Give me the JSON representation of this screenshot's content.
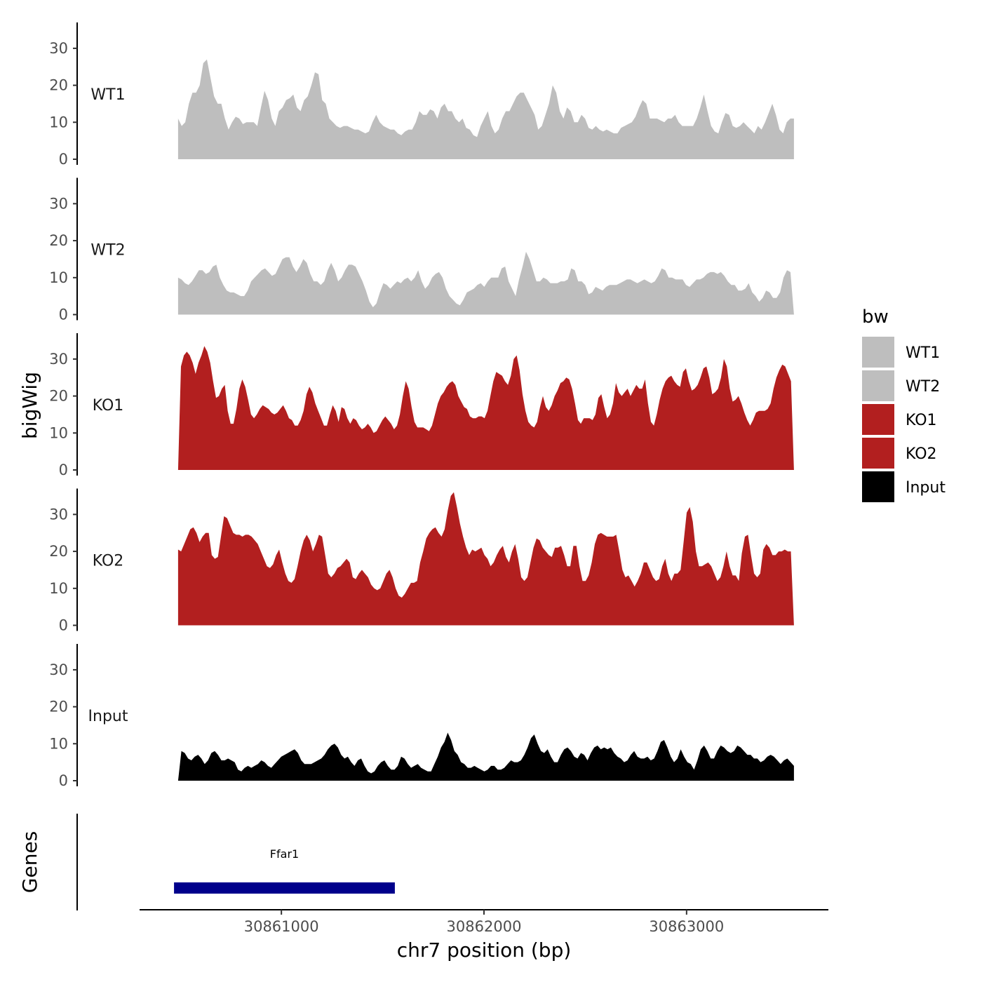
{
  "chart_data": {
    "type": "area",
    "ylabel": "bigWig",
    "genes_label": "Genes",
    "xlabel": "chr7 position (bp)",
    "xlim": [
      30860300,
      30863700
    ],
    "x_range_data": [
      30860490,
      30863530
    ],
    "ylim": [
      0,
      37
    ],
    "yticks": [
      "0",
      "10",
      "20",
      "30"
    ],
    "xticks": [
      {
        "value": 30861000,
        "label": "30861000"
      },
      {
        "value": 30862000,
        "label": "30862000"
      },
      {
        "value": 30863000,
        "label": "30863000"
      }
    ],
    "legend": {
      "title": "bw",
      "position": "right",
      "items": [
        {
          "label": "WT1",
          "color": "#bebebe"
        },
        {
          "label": "WT2",
          "color": "#bebebe"
        },
        {
          "label": "KO1",
          "color": "#b21f1f"
        },
        {
          "label": "KO2",
          "color": "#b21f1f"
        },
        {
          "label": "Input",
          "color": "#000000"
        }
      ]
    },
    "series": [
      {
        "name": "WT1",
        "color": "#bebebe",
        "values": [
          11,
          9,
          10,
          15,
          18,
          18,
          20,
          26,
          27,
          22,
          17,
          15,
          15,
          11,
          8,
          10,
          11.5,
          11,
          9.5,
          10,
          10,
          10,
          9,
          14,
          18.5,
          16,
          11,
          9,
          13,
          14,
          16,
          16.5,
          17.5,
          14,
          13,
          16,
          17,
          20,
          23.5,
          23,
          16,
          15,
          11,
          10,
          9,
          8.5,
          9,
          9,
          8.5,
          8,
          8,
          7.5,
          7,
          7.5,
          10,
          12,
          10,
          9,
          8.5,
          8,
          8,
          7,
          6.5,
          7.5,
          8,
          8,
          10,
          13,
          12,
          12,
          13.5,
          13,
          11,
          14,
          15,
          13,
          13,
          11,
          10,
          11,
          8.5,
          8,
          6.5,
          6,
          9,
          11,
          13,
          9,
          7,
          8,
          11,
          13,
          13,
          15,
          17,
          18,
          18,
          16,
          14,
          12,
          8,
          9,
          12,
          15,
          20,
          18,
          13,
          11,
          14,
          13,
          10,
          10,
          12,
          11,
          8.5,
          8,
          9,
          8,
          7.5,
          8,
          7.5,
          7,
          7,
          8.5,
          9,
          9.5,
          10,
          11.5,
          14,
          16,
          15,
          11,
          11,
          11,
          10.5,
          10,
          11,
          11,
          12,
          10,
          9,
          9,
          9,
          9,
          11,
          14,
          17.5,
          13,
          9,
          7.5,
          7,
          10,
          12.5,
          12,
          9,
          8.5,
          9,
          10,
          9,
          8,
          7,
          9,
          8,
          10,
          12.5,
          15,
          12,
          8,
          7,
          10,
          11,
          11
        ]
      },
      {
        "name": "WT2",
        "color": "#bebebe",
        "values": [
          10,
          9.5,
          8.5,
          8,
          9,
          10.5,
          12,
          12,
          11,
          11.5,
          13,
          13.5,
          10,
          8,
          6.5,
          6,
          6,
          5.5,
          5,
          5,
          6.5,
          9,
          10,
          11,
          12,
          12.5,
          11.5,
          10.5,
          11,
          13,
          15,
          15.5,
          15.5,
          13,
          11.5,
          13,
          15,
          14,
          11,
          9,
          9,
          8,
          9,
          12,
          14,
          12,
          9,
          10,
          12,
          13.5,
          13.5,
          13,
          11,
          9,
          6.5,
          3.5,
          2,
          3,
          6,
          8.5,
          8,
          7,
          8,
          9,
          8.5,
          9.5,
          10,
          9,
          10,
          12,
          9,
          7,
          8,
          10,
          11,
          11.5,
          10,
          7,
          5,
          4,
          3,
          2.5,
          4,
          6,
          6.5,
          7,
          8,
          8.5,
          7.5,
          9,
          10,
          10,
          10,
          12.5,
          13,
          9,
          7,
          5,
          9.5,
          13,
          17,
          15,
          12,
          9,
          9,
          10,
          9.5,
          8.5,
          8.5,
          8.5,
          9,
          9,
          9.5,
          12.5,
          12,
          9,
          9,
          8,
          5.5,
          6,
          7.5,
          7,
          6.5,
          7.5,
          8,
          8,
          8,
          8.5,
          9,
          9.5,
          9.5,
          9,
          8.5,
          9,
          9.5,
          9,
          8.5,
          9,
          10.5,
          12.5,
          12,
          10,
          10,
          9.5,
          9.5,
          9.5,
          8,
          7.5,
          8.5,
          9.5,
          9.5,
          10,
          11,
          11.5,
          11.5,
          11,
          11.5,
          10.5,
          9,
          8,
          8,
          6.5,
          6.5,
          7,
          8.5,
          6,
          5,
          3.5,
          4.5,
          6.5,
          6,
          4.5,
          4.5,
          6,
          10,
          12,
          11.5,
          0
        ]
      },
      {
        "name": "KO1",
        "color": "#b21f1f",
        "values": [
          0,
          28,
          31,
          32,
          31,
          29,
          26,
          29,
          31,
          33.5,
          32,
          29,
          24,
          19.5,
          20,
          22,
          23,
          16,
          12.5,
          12.5,
          16.5,
          22,
          24.5,
          22.5,
          19,
          15,
          14,
          15,
          16.5,
          17.5,
          17,
          16.5,
          15.5,
          15,
          15.5,
          16.5,
          17.5,
          16,
          14,
          13.5,
          12,
          12,
          13.5,
          16,
          20.5,
          22.5,
          21,
          18,
          16,
          14,
          12,
          12,
          15,
          17.5,
          16,
          13,
          17,
          16.5,
          14,
          12.5,
          14,
          13.5,
          12,
          11,
          11.5,
          12.5,
          11.5,
          10,
          10.5,
          12,
          13.5,
          14.5,
          13.5,
          12.5,
          11,
          12,
          15,
          20,
          24,
          22,
          17,
          13,
          11.5,
          11.5,
          11.5,
          11,
          10.5,
          12,
          15,
          18,
          20,
          21,
          22.5,
          23.5,
          24,
          23,
          20,
          18.5,
          17,
          16.5,
          14.5,
          14,
          14,
          14.5,
          14.5,
          14,
          16,
          20,
          24,
          26.5,
          26,
          25.5,
          24,
          23,
          25.5,
          30,
          31,
          27,
          20.5,
          16,
          13,
          12,
          11.5,
          13,
          17,
          20,
          17,
          16,
          17.5,
          20,
          21.5,
          23.5,
          24,
          25,
          24.5,
          22,
          18,
          13.5,
          12.5,
          14,
          14,
          14,
          13.5,
          15,
          19.5,
          20.5,
          17,
          14,
          15,
          18,
          23.5,
          21,
          20,
          21,
          22,
          20,
          21.5,
          23,
          22,
          22,
          24.5,
          18,
          13,
          12,
          15,
          19,
          22,
          24,
          25,
          25.5,
          24,
          23,
          22.5,
          26.5,
          27.5,
          24,
          21.5,
          22,
          23,
          25,
          27.5,
          28,
          25,
          20.5,
          21,
          22,
          25,
          30,
          28,
          22,
          18.5,
          19,
          20,
          18,
          15.5,
          13.5,
          12,
          13.5,
          15.5,
          16,
          16,
          16,
          16.5,
          18,
          22,
          25,
          27,
          28.5,
          28,
          26,
          24,
          0
        ]
      },
      {
        "name": "KO2",
        "color": "#b21f1f",
        "values": [
          20.5,
          20,
          22,
          24,
          26,
          26.5,
          25,
          22.5,
          24,
          25,
          25,
          19,
          18,
          18.5,
          24,
          29.5,
          29,
          27,
          25,
          24.5,
          24.5,
          24,
          24.5,
          24.5,
          24,
          23,
          22,
          20,
          18,
          16,
          15.5,
          16.5,
          19,
          20.5,
          17,
          14,
          12,
          11.5,
          12.5,
          16,
          20,
          23,
          24.5,
          23,
          20,
          22,
          24.5,
          24,
          19,
          14,
          13,
          14,
          15.5,
          16,
          17,
          18,
          17,
          13,
          12.5,
          14,
          15,
          14,
          13,
          11,
          10,
          9.5,
          10,
          12,
          14,
          15,
          13,
          10,
          8,
          7.5,
          8.5,
          10,
          11.5,
          11.5,
          12,
          17,
          20,
          23.5,
          25,
          26,
          26.5,
          25,
          24,
          26,
          31,
          35,
          36,
          32,
          27.5,
          24,
          21,
          19,
          20.5,
          20,
          20.5,
          21,
          19,
          18,
          16,
          17,
          19,
          20.5,
          21.5,
          18.5,
          17,
          20,
          22,
          18,
          13,
          12,
          13,
          17,
          21,
          23.5,
          23,
          21,
          20,
          19,
          18.5,
          21,
          21,
          21.5,
          19,
          16,
          16,
          21.5,
          21.5,
          16,
          12,
          12,
          13.5,
          17,
          22,
          24.5,
          25,
          24.5,
          24,
          24,
          24,
          24.5,
          20,
          15,
          13,
          13.5,
          12,
          10.5,
          12,
          14,
          17,
          17,
          15,
          13,
          12,
          12.5,
          16,
          18,
          14,
          12,
          14,
          14,
          15,
          22.5,
          30.5,
          32,
          28,
          20,
          16,
          16,
          16.5,
          17,
          16,
          14,
          12,
          13,
          16,
          20,
          16,
          13.5,
          13.5,
          12,
          19.5,
          24,
          24.5,
          19,
          14,
          13,
          14,
          20.5,
          22,
          21,
          19,
          19,
          20,
          20,
          20.5,
          20,
          20,
          0
        ]
      },
      {
        "name": "Input",
        "color": "#000000",
        "values": [
          0,
          8,
          7.5,
          6,
          5.5,
          6.5,
          7,
          6,
          4.5,
          5.5,
          7.5,
          8,
          7,
          5.5,
          5.5,
          6,
          5.5,
          5,
          3,
          2.5,
          3.5,
          4,
          3.5,
          4,
          4.5,
          5.5,
          5,
          4,
          3.5,
          4.5,
          5.5,
          6.5,
          7,
          7.5,
          8,
          8.5,
          7.5,
          5.5,
          4.5,
          4.5,
          4.5,
          5,
          5.5,
          6,
          7,
          8.5,
          9.5,
          10,
          9,
          7,
          6,
          6.5,
          5,
          4,
          5.5,
          6,
          4,
          2.5,
          2,
          2.5,
          4,
          5,
          5.5,
          4,
          3,
          3,
          4,
          6.5,
          6,
          4.5,
          3.5,
          4,
          4.5,
          3.5,
          3,
          2.5,
          2.5,
          4.5,
          6.5,
          9,
          10.5,
          13,
          11,
          8,
          7,
          5,
          4.5,
          3.5,
          3.5,
          4,
          3.5,
          3,
          2.5,
          3,
          4,
          4,
          3,
          3,
          3.5,
          4.5,
          5.5,
          5,
          5,
          5.5,
          7,
          9,
          11.5,
          12.5,
          10,
          8,
          7.5,
          8.5,
          6.5,
          5,
          5,
          7,
          8.5,
          9,
          8,
          6.5,
          6,
          7.5,
          7,
          5.5,
          7.5,
          9,
          9.5,
          8.5,
          9,
          8.5,
          9,
          7.5,
          6.5,
          6,
          5,
          5.5,
          7,
          8,
          6.5,
          6,
          6,
          6.5,
          5.5,
          6,
          8,
          10.5,
          11,
          9,
          6.5,
          5,
          6,
          8.5,
          6.5,
          5,
          4.5,
          3,
          5.5,
          8.5,
          9.5,
          8,
          6,
          6,
          8,
          9.5,
          9,
          8,
          7.5,
          8,
          9.5,
          9,
          8,
          7,
          7,
          6,
          6,
          5,
          5.5,
          6.5,
          7,
          6.5,
          5.5,
          4.5,
          5.5,
          6,
          5,
          4
        ]
      }
    ],
    "genes": [
      {
        "name": "Ffar1",
        "start": 30860470,
        "end": 30861560,
        "color": "#00008b"
      }
    ]
  }
}
